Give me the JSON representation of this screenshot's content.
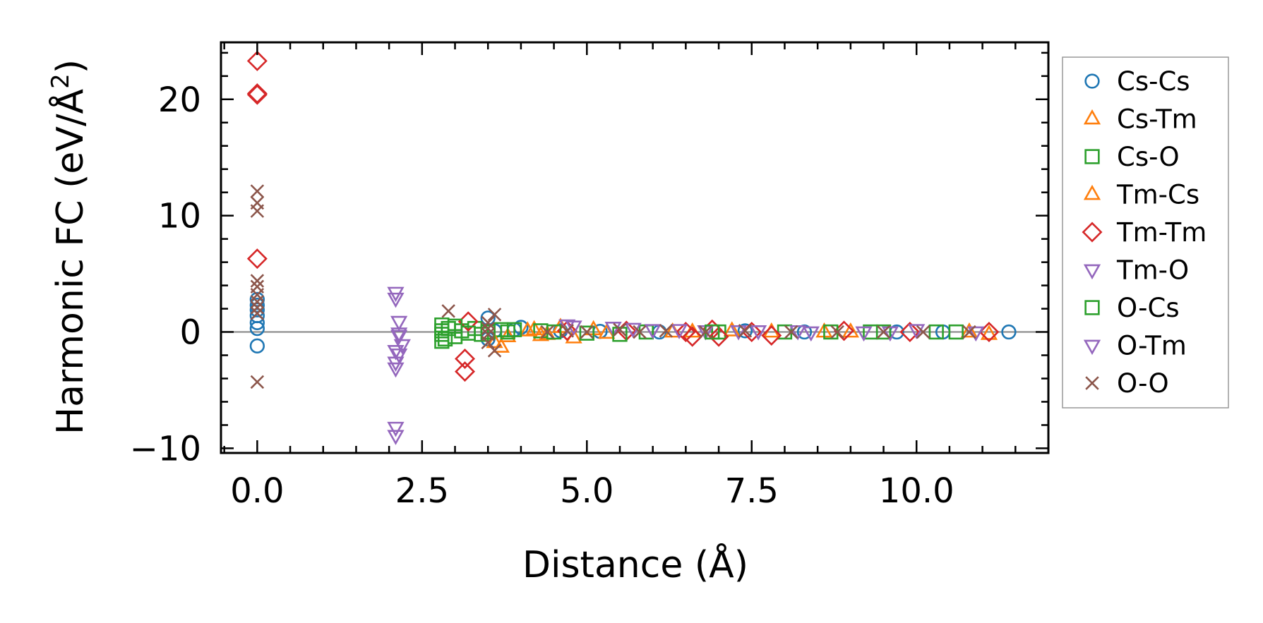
{
  "chart_data": {
    "type": "scatter",
    "title": "",
    "xlabel": "Distance (Å)",
    "ylabel_main": "Harmonic FC (eV/Å",
    "ylabel_sup": "2",
    "ylabel_close": ")",
    "xlim": [
      -0.55,
      12.0
    ],
    "ylim": [
      -10.4,
      24.9
    ],
    "xticks": [
      0.0,
      2.5,
      5.0,
      7.5,
      10.0
    ],
    "xtick_labels": [
      "0.0",
      "2.5",
      "5.0",
      "7.5",
      "10.0"
    ],
    "yticks": [
      -10,
      0,
      10,
      20
    ],
    "ytick_labels": [
      "−10",
      "0",
      "10",
      "20"
    ],
    "zero_line": true,
    "grid": false,
    "legend_position": "outside-right",
    "series": [
      {
        "name": "Cs-Cs",
        "marker": "circle",
        "color": "#1f77b4",
        "points": [
          [
            0,
            2.8
          ],
          [
            0,
            2.3
          ],
          [
            0,
            1.9
          ],
          [
            0,
            1.4
          ],
          [
            0,
            0.8
          ],
          [
            0,
            0.3
          ],
          [
            0,
            -1.2
          ],
          [
            3.5,
            1.2
          ],
          [
            3.5,
            -0.6
          ],
          [
            3.6,
            0.1
          ],
          [
            3.9,
            0.2
          ],
          [
            4.0,
            0.4
          ],
          [
            4.6,
            0.1
          ],
          [
            5.2,
            0.05
          ],
          [
            6.1,
            0.0
          ],
          [
            7.4,
            0.1
          ],
          [
            8.3,
            0.0
          ],
          [
            9.7,
            0.0
          ],
          [
            10.4,
            0.0
          ],
          [
            11.4,
            0.0
          ]
        ]
      },
      {
        "name": "Cs-Tm",
        "marker": "triangle-up",
        "color": "#ff7f0e",
        "points": [
          [
            3.7,
            -1.3
          ],
          [
            3.8,
            -0.4
          ],
          [
            4.2,
            0.2
          ],
          [
            4.3,
            -0.3
          ],
          [
            4.8,
            -0.5
          ],
          [
            5.1,
            0.2
          ],
          [
            6.3,
            0.0
          ],
          [
            7.2,
            0.1
          ],
          [
            8.6,
            0.0
          ],
          [
            10.8,
            0.0
          ]
        ]
      },
      {
        "name": "Cs-O",
        "marker": "square",
        "color": "#2ca02c",
        "points": [
          [
            2.8,
            0.6
          ],
          [
            2.8,
            0.1
          ],
          [
            2.8,
            -0.2
          ],
          [
            2.8,
            -0.8
          ],
          [
            2.9,
            0.3
          ],
          [
            3.0,
            -0.4
          ],
          [
            3.1,
            0.1
          ],
          [
            3.3,
            0.3
          ],
          [
            3.4,
            -0.2
          ],
          [
            3.7,
            0.2
          ],
          [
            3.8,
            0.0
          ],
          [
            4.3,
            0.1
          ],
          [
            5.0,
            -0.1
          ],
          [
            5.9,
            0.0
          ],
          [
            7.0,
            0.0
          ],
          [
            8.0,
            0.0
          ],
          [
            9.3,
            0.0
          ],
          [
            10.3,
            0.0
          ],
          [
            10.6,
            0.0
          ]
        ]
      },
      {
        "name": "Tm-Cs",
        "marker": "triangle-up",
        "color": "#ff7f0e",
        "points": [
          [
            3.6,
            -0.9
          ],
          [
            4.1,
            0.1
          ],
          [
            4.4,
            -0.2
          ],
          [
            4.6,
            0.4
          ],
          [
            5.3,
            -0.1
          ],
          [
            6.6,
            0.0
          ],
          [
            7.8,
            0.0
          ],
          [
            9.0,
            0.0
          ],
          [
            11.1,
            -0.2
          ]
        ]
      },
      {
        "name": "Tm-Tm",
        "marker": "diamond",
        "color": "#d62728",
        "points": [
          [
            0,
            23.3
          ],
          [
            0,
            20.5
          ],
          [
            0,
            20.4
          ],
          [
            0,
            6.3
          ],
          [
            3.15,
            -2.3
          ],
          [
            3.15,
            -3.4
          ],
          [
            3.2,
            0.9
          ],
          [
            4.7,
            0.1
          ],
          [
            5.6,
            0.1
          ],
          [
            6.5,
            0.0
          ],
          [
            6.6,
            -0.4
          ],
          [
            6.9,
            0.2
          ],
          [
            7.0,
            -0.4
          ],
          [
            7.5,
            0.0
          ],
          [
            7.8,
            -0.3
          ],
          [
            8.9,
            0.1
          ],
          [
            9.9,
            0.0
          ],
          [
            11.1,
            0.0
          ]
        ]
      },
      {
        "name": "Tm-O",
        "marker": "triangle-down",
        "color": "#9467bd",
        "points": [
          [
            2.1,
            3.4
          ],
          [
            2.1,
            2.9
          ],
          [
            2.15,
            0.9
          ],
          [
            2.15,
            -0.1
          ],
          [
            2.1,
            -1.6
          ],
          [
            2.15,
            -1.9
          ],
          [
            2.1,
            -2.6
          ],
          [
            2.1,
            -3.1
          ],
          [
            2.1,
            -8.2
          ],
          [
            2.1,
            -8.9
          ],
          [
            4.7,
            0.6
          ],
          [
            5.4,
            0.4
          ],
          [
            6.0,
            0.2
          ],
          [
            6.8,
            0.1
          ],
          [
            7.6,
            0.1
          ],
          [
            8.4,
            0.0
          ],
          [
            9.2,
            0.0
          ]
        ]
      },
      {
        "name": "O-Cs",
        "marker": "square",
        "color": "#2ca02c",
        "points": [
          [
            2.85,
            -0.6
          ],
          [
            3.0,
            0.5
          ],
          [
            3.2,
            -0.1
          ],
          [
            3.5,
            0.0
          ],
          [
            3.9,
            0.2
          ],
          [
            4.5,
            0.0
          ],
          [
            5.5,
            -0.2
          ],
          [
            6.9,
            0.0
          ],
          [
            8.7,
            0.0
          ],
          [
            9.5,
            0.0
          ]
        ]
      },
      {
        "name": "O-Tm",
        "marker": "triangle-down",
        "color": "#9467bd",
        "points": [
          [
            2.15,
            -0.3
          ],
          [
            2.2,
            -1.1
          ],
          [
            4.8,
            0.5
          ],
          [
            5.7,
            0.3
          ],
          [
            6.4,
            0.2
          ],
          [
            7.3,
            0.1
          ],
          [
            8.2,
            0.1
          ],
          [
            9.6,
            0.0
          ],
          [
            10.0,
            0.2
          ],
          [
            10.9,
            0.0
          ]
        ]
      },
      {
        "name": "O-O",
        "marker": "x",
        "color": "#8c564b",
        "points": [
          [
            0,
            12.1
          ],
          [
            0,
            11.1
          ],
          [
            0,
            10.4
          ],
          [
            0,
            4.4
          ],
          [
            0,
            3.9
          ],
          [
            0,
            3.2
          ],
          [
            0,
            2.6
          ],
          [
            0,
            2.1
          ],
          [
            0,
            1.6
          ],
          [
            0,
            -4.3
          ],
          [
            2.9,
            1.8
          ],
          [
            3.5,
            0.8
          ],
          [
            3.5,
            0.3
          ],
          [
            3.5,
            -0.2
          ],
          [
            3.5,
            -0.9
          ],
          [
            3.6,
            1.5
          ],
          [
            3.6,
            -1.6
          ],
          [
            4.4,
            0.0
          ],
          [
            4.7,
            0.1
          ],
          [
            5.0,
            0.0
          ],
          [
            5.5,
            0.2
          ],
          [
            5.8,
            0.0
          ],
          [
            6.2,
            0.1
          ],
          [
            6.8,
            0.0
          ],
          [
            7.4,
            0.1
          ],
          [
            8.1,
            0.0
          ],
          [
            8.8,
            0.0
          ],
          [
            9.5,
            0.0
          ],
          [
            10.1,
            0.0
          ],
          [
            10.8,
            0.0
          ]
        ]
      }
    ]
  }
}
